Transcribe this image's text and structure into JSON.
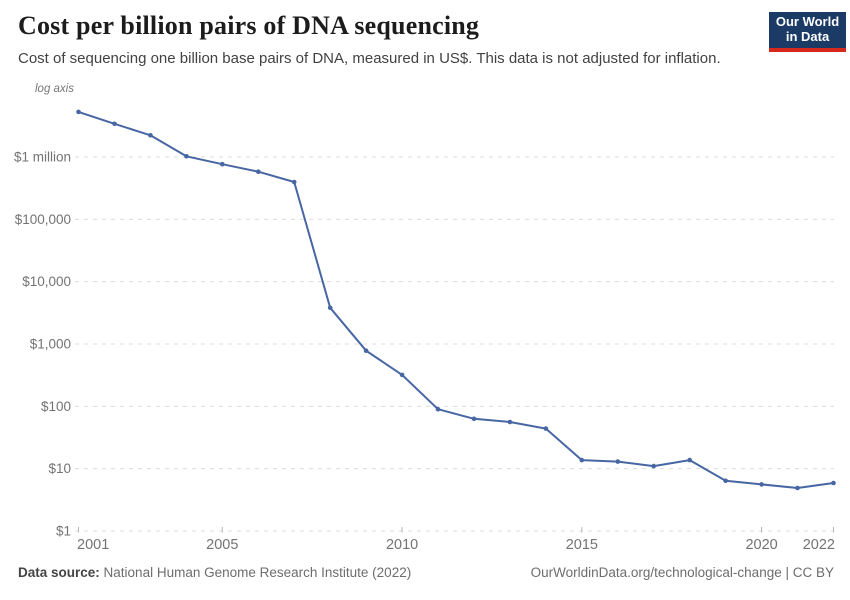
{
  "header": {
    "title": "Cost per billion pairs of DNA sequencing",
    "subtitle": "Cost of sequencing one billion base pairs of DNA, measured in US$. This data is not adjusted for inflation.",
    "logo": {
      "line1": "Our World",
      "line2": "in Data",
      "bg_color": "#1b3a66",
      "accent_color": "#d7281e"
    }
  },
  "chart_data": {
    "type": "line",
    "title": "Cost per billion pairs of DNA sequencing",
    "axis_note": "log axis",
    "yscale": "log",
    "grid": true,
    "legend": "none",
    "line_color": "#4766a3",
    "grid_color": "#dcdcdc",
    "tick_label_color": "#737373",
    "series_name": "Cost of sequencing one billion base pairs of DNA (US$)",
    "x": [
      2001,
      2002,
      2003,
      2004,
      2005,
      2006,
      2007,
      2008,
      2009,
      2010,
      2011,
      2012,
      2013,
      2014,
      2015,
      2016,
      2017,
      2018,
      2019,
      2020,
      2021,
      2022
    ],
    "values": [
      5292390,
      3413800,
      2230980,
      1028850,
      766730,
      581920,
      397090,
      3810,
      780,
      320,
      90,
      63,
      56,
      44,
      13.7,
      13,
      11,
      13.7,
      6.4,
      5.6,
      4.9,
      5.9
    ],
    "xlim": [
      2001,
      2022
    ],
    "ylim": [
      1,
      20000000
    ],
    "yticks": [
      {
        "value": 1,
        "label": "$1"
      },
      {
        "value": 10,
        "label": "$10"
      },
      {
        "value": 100,
        "label": "$100"
      },
      {
        "value": 1000,
        "label": "$1,000"
      },
      {
        "value": 10000,
        "label": "$10,000"
      },
      {
        "value": 100000,
        "label": "$100,000"
      },
      {
        "value": 1000000,
        "label": "$1 million"
      }
    ],
    "xticks": [
      {
        "value": 2001,
        "label": "2001",
        "anchor": "start"
      },
      {
        "value": 2005,
        "label": "2005",
        "anchor": "middle"
      },
      {
        "value": 2010,
        "label": "2010",
        "anchor": "middle"
      },
      {
        "value": 2015,
        "label": "2015",
        "anchor": "middle"
      },
      {
        "value": 2020,
        "label": "2020",
        "anchor": "middle"
      },
      {
        "value": 2022,
        "label": "2022",
        "anchor": "end"
      }
    ]
  },
  "footer": {
    "source_label": "Data source:",
    "source_text": "National Human Genome Research Institute (2022)",
    "right_text": "OurWorldinData.org/technological-change | CC BY"
  }
}
